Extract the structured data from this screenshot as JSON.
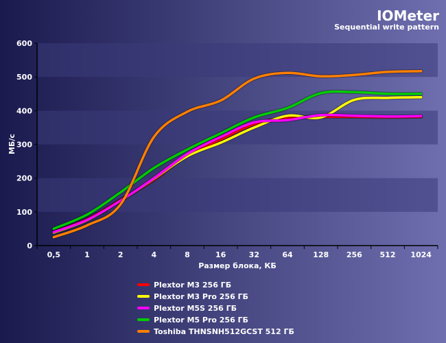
{
  "header": {
    "title": "IOMeter",
    "subtitle": "Sequential write pattern"
  },
  "colors": {
    "background_start": "#1a1a4e",
    "background_end": "#6f6fb0",
    "band": "#3a3a7a",
    "text": "#ffffff"
  },
  "chart_data": {
    "type": "line",
    "title": "IOMeter",
    "subtitle": "Sequential write pattern",
    "xlabel": "Размер блока, КБ",
    "ylabel": "МБ/с",
    "categories": [
      "0,5",
      "1",
      "2",
      "4",
      "8",
      "16",
      "32",
      "64",
      "128",
      "256",
      "512",
      "1024"
    ],
    "ylim": [
      0,
      600
    ],
    "yticks": [
      0,
      100,
      200,
      300,
      400,
      500,
      600
    ],
    "grid": false,
    "alternating_bands": true,
    "legend_position": "bottom",
    "series": [
      {
        "name": "Plextor M3 256 ГБ",
        "color": "#ff0000",
        "values": [
          40,
          78,
          135,
          195,
          268,
          315,
          360,
          378,
          382,
          382,
          381,
          382
        ]
      },
      {
        "name": "Plextor M3 Pro 256 ГБ",
        "color": "#ffff00",
        "values": [
          38,
          75,
          133,
          198,
          265,
          305,
          350,
          385,
          380,
          432,
          438,
          440
        ]
      },
      {
        "name": "Plextor M5S 256 ГБ",
        "color": "#ff00ff",
        "values": [
          40,
          76,
          133,
          200,
          272,
          322,
          365,
          372,
          387,
          385,
          383,
          384
        ]
      },
      {
        "name": "Plextor M5 Pro 256 ГБ",
        "color": "#00cc00",
        "values": [
          50,
          92,
          158,
          230,
          285,
          333,
          380,
          408,
          452,
          455,
          450,
          450
        ]
      },
      {
        "name": "Toshiba THNSNH512GCST 512 ГБ",
        "color": "#ff7f00",
        "values": [
          25,
          60,
          122,
          322,
          397,
          430,
          495,
          512,
          502,
          506,
          515,
          517
        ]
      }
    ]
  }
}
